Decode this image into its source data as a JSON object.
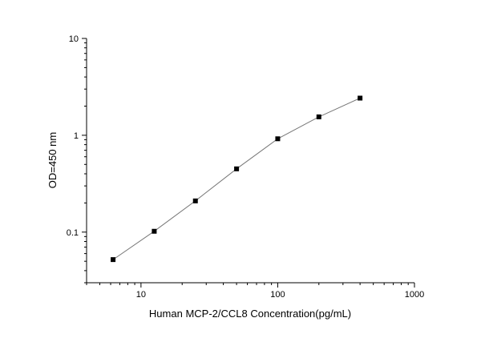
{
  "chart_data": {
    "type": "scatter",
    "title": "",
    "xlabel": "Human MCP-2/CCL8 Concentration(pg/mL)",
    "ylabel": "OD=450 nm",
    "xscale": "log",
    "yscale": "log",
    "xlim": [
      4,
      1000
    ],
    "ylim": [
      0.03,
      10
    ],
    "xticks": [
      10,
      100,
      1000
    ],
    "xtick_labels": [
      "10",
      "100",
      "1000"
    ],
    "yticks": [
      0.1,
      1,
      10
    ],
    "ytick_labels": [
      "0.1",
      "1",
      "10"
    ],
    "grid": false,
    "legend": "none",
    "series": [
      {
        "x": [
          6.25,
          12.5,
          25,
          50,
          100,
          200,
          400
        ],
        "y": [
          0.052,
          0.102,
          0.21,
          0.45,
          0.92,
          1.55,
          2.42
        ]
      }
    ],
    "colors": {
      "line": "#777777",
      "marker": "#000000",
      "axis": "#000000"
    }
  }
}
